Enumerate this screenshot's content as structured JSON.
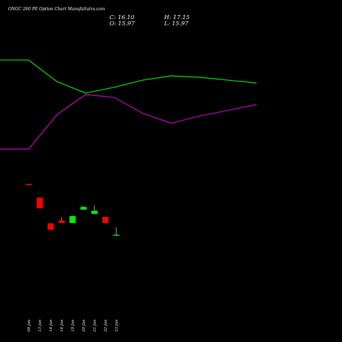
{
  "header": {
    "title": "ONGC 260  PE Option  Chart MunafaSutra.com",
    "close": "C: 16.10",
    "open": "O: 15.97",
    "high": "H: 17.15",
    "low": "L: 15.97"
  },
  "chart_data": {
    "type": "candlestick",
    "title": "ONGC 260  PE Option  Chart MunafaSutra.com",
    "x_tick_labels": [
      "09 Jan",
      "13 Jan",
      "14 Jan",
      "16 Jan",
      "19 Jan",
      "20 Jan",
      "21 Jan",
      "22 Jan",
      "23 Jan"
    ],
    "candles": [
      {
        "date": "09 Jan",
        "open": 23.2,
        "high": 23.2,
        "low": 23.1,
        "close": 23.1
      },
      {
        "date": "13 Jan",
        "open": 21.3,
        "high": 21.3,
        "low": 19.8,
        "close": 19.8
      },
      {
        "date": "14 Jan",
        "open": 17.7,
        "high": 17.7,
        "low": 16.8,
        "close": 16.8
      },
      {
        "date": "16 Jan",
        "open": 18.1,
        "high": 18.55,
        "low": 17.75,
        "close": 17.75
      },
      {
        "date": "19 Jan",
        "open": 17.75,
        "high": 18.8,
        "low": 17.75,
        "close": 18.7
      },
      {
        "date": "20 Jan",
        "open": 19.6,
        "high": 20.1,
        "low": 19.6,
        "close": 20.0
      },
      {
        "date": "21 Jan",
        "open": 19.0,
        "high": 20.2,
        "low": 19.0,
        "close": 19.45
      },
      {
        "date": "22 Jan",
        "open": 18.6,
        "high": 18.6,
        "low": 17.7,
        "close": 17.75
      },
      {
        "date": "23 Jan",
        "open": 15.97,
        "high": 17.15,
        "low": 15.97,
        "close": 16.1
      }
    ],
    "price_range": [
      14.5,
      25.0
    ],
    "indicator_lines": [
      {
        "color": "#00ee00",
        "values": [
          82.0,
          82.0,
          67.0,
          59.0,
          63.0,
          68.0,
          71.0,
          70.0,
          68.0,
          66.0
        ]
      },
      {
        "color": "#cc00cc",
        "values": [
          20.0,
          20.0,
          44.0,
          58.0,
          56.0,
          45.0,
          38.0,
          43.0,
          47.0,
          51.0
        ]
      }
    ],
    "indicator_range": [
      0,
      100
    ],
    "colors": {
      "up": "#00ee00",
      "down": "#ff0000",
      "background": "#000000",
      "text": "#ffffff"
    },
    "grid": false
  }
}
